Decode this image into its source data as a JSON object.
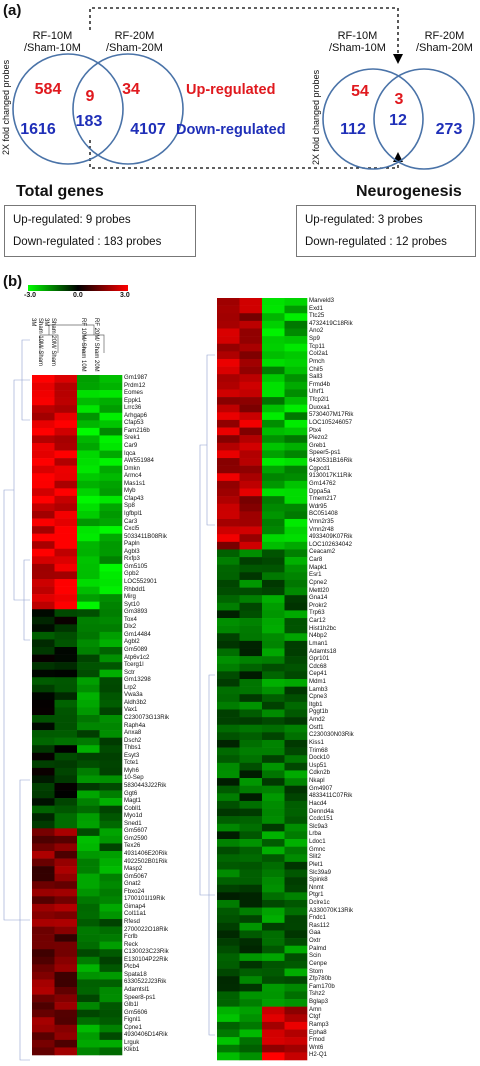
{
  "panel_a": {
    "label": "(a)",
    "y_axis_label": "2X fold changed probes",
    "total": {
      "left_set": [
        "RF-10M",
        "/Sham-10M"
      ],
      "right_set": [
        "RF-20M",
        "/Sham-20M"
      ],
      "up_left": "584",
      "up_both": "9",
      "up_right": "34",
      "down_left": "1616",
      "down_both": "183",
      "down_right": "4107",
      "title": "Total genes",
      "summary_up": "Up-regulated: 9 probes",
      "summary_down": "Down-regulated : 183 probes"
    },
    "neuro": {
      "left_set": [
        "RF-10M",
        "/Sham-10M"
      ],
      "right_set": [
        "RF-20M",
        "/Sham-20M"
      ],
      "up_left": "54",
      "up_both": "3",
      "up_right": "",
      "down_left": "112",
      "down_both": "12",
      "down_right": "273",
      "title": "Neurogenesis",
      "summary_up": "Up-regulated: 3 probes",
      "summary_down": "Down-regulated : 12 probes"
    },
    "category_up": "Up-regulated",
    "category_down": "Down-regulated",
    "colors": {
      "up": "#e0191e",
      "down": "#1f2fb8",
      "circle": "#4a73a8"
    }
  },
  "panel_b": {
    "label": "(b)",
    "scale_min": "-3.0",
    "scale_mid": "0.0",
    "scale_max": "3.0",
    "column_labels": [
      "Sham 10M/ Sham 3M",
      "Sham 20M/ Sham 3M",
      "RF 10M/ Sham 10M",
      "RF 20M/ Sham 20M"
    ],
    "left_genes": [
      "Gm1987",
      "Prdm12",
      "Eomes",
      "Eppk1",
      "Lrrc36",
      "Arhgap6",
      "Cfap53",
      "Fam216b",
      "Srek1",
      "Car9",
      "Iqca",
      "AW551984",
      "Dmkn",
      "Armc4",
      "Mas1s1",
      "Myb",
      "Cfap43",
      "Sp8",
      "Igfbpl1",
      "Car3",
      "Cxcl5",
      "5033411B08Rik",
      "Papln",
      "Agbl3",
      "Rxfp3",
      "Gm5105",
      "Gpb2",
      "LOC552901",
      "Rhbdd1",
      "Mirg",
      "Syt10",
      "Gm3893",
      "Tox4",
      "Dlx2",
      "Gm14484",
      "Agbl2",
      "Gm5089",
      "Atp6v1c2",
      "Tcerg1l",
      "Sctr",
      "Gm13298",
      "Lrp2",
      "Vwa3a",
      "Aldh3b2",
      "Vax1",
      "C230073G13Rik",
      "Raph4a",
      "Anxa8",
      "Dsch2",
      "Thbs1",
      "Esyt3",
      "Tcte1",
      "Myh6",
      "10-Sep",
      "5830443J22Rik",
      "Ggt6",
      "Magt1",
      "Cobll1",
      "Myo1d",
      "Sned1",
      "Gm5607",
      "Gm2590",
      "Tex26",
      "4931406E20Rik",
      "4922502B01Rik",
      "Masp2",
      "Gm5067",
      "Gnat2",
      "Fbxo24",
      "1700101I19Rik",
      "Gimap4",
      "Col11a1",
      "Rfesd",
      "2700022O18Rik",
      "Fcrlb",
      "Reck",
      "C130023C23Rik",
      "E130104P22Rik",
      "Plcb4",
      "Spata18",
      "6330522J23Rik",
      "Adamtsl1",
      "Speer8-ps1",
      "Glb1l",
      "Gm5606",
      "Fignl1",
      "Cpne1",
      "4930406D14Rik",
      "Lrguk",
      "Klkb1"
    ],
    "right_genes": [
      "Marveld3",
      "Exd1",
      "Ttc25",
      "4732419C18Rik",
      "Ano2",
      "Sp9",
      "Tcp11",
      "Col2a1",
      "Pmch",
      "Chil5",
      "Sall3",
      "Frmd4b",
      "Uhrf1",
      "Tfcp2l1",
      "Duoxa1",
      "5730407M17Rik",
      "LOC105246057",
      "Ptx4",
      "Piezo2",
      "Greb1",
      "Speer5-ps1",
      "6430531B16Rik",
      "Cgpcd1",
      "9130017K11Rik",
      "Gm14762",
      "Dppa5a",
      "Tmem217",
      "Wdr95",
      "BC051408",
      "Vmn2r35",
      "Vmn2r48",
      "4933409K07Rik",
      "LOC102634042",
      "Ceacam2",
      "Car8",
      "Mapk1",
      "Esr1",
      "Cpne2",
      "Mettl20",
      "Gna14",
      "Prokr2",
      "Trp63",
      "Car12",
      "Hist1h2bc",
      "N4bp2",
      "Lman1",
      "Adamts18",
      "Gpr101",
      "Cdc68",
      "Cep41",
      "Mdm1",
      "Lamb3",
      "Cpne3",
      "Itgb1",
      "Pggt1b",
      "Amd2",
      "Ostf1",
      "C230030N03Rik",
      "Kiss1",
      "Trim68",
      "Dock10",
      "Usp51",
      "Cdkn2b",
      "Nkapl",
      "Gm4907",
      "4833411C07Rik",
      "Hacd4",
      "Dennd4a",
      "Ccdc151",
      "Slc9a3",
      "Lrba",
      "Ldoc1",
      "Gmnc",
      "Slit2",
      "Plet1",
      "Slc39a9",
      "Spink8",
      "Nnmt",
      "Ptgr1",
      "Dclre1c",
      "A330070K13Rik",
      "Fndc1",
      "Ras112",
      "Gaa",
      "Oxtr",
      "Palmd",
      "Scin",
      "Cenpe",
      "Stom",
      "Zfp780b",
      "Fam170b",
      "Tshz2",
      "Bglap3",
      "Amn",
      "Ctgf",
      "Ramp3",
      "Epha8",
      "Fmod",
      "Wnt6",
      "H2-Q1"
    ]
  }
}
